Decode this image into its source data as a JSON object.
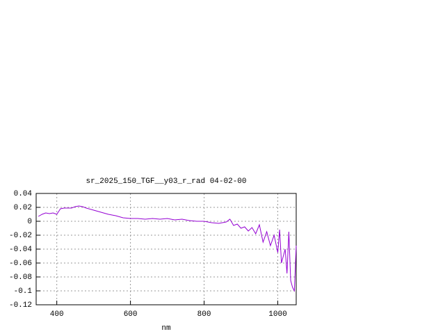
{
  "chart_data": {
    "type": "line",
    "title": "sr_2025_150_TGF__y03_r_rad 04-02-00",
    "x_label": "nm",
    "x": [
      350,
      360,
      370,
      380,
      390,
      400,
      410,
      420,
      440,
      450,
      460,
      470,
      480,
      500,
      520,
      540,
      560,
      580,
      600,
      620,
      640,
      660,
      680,
      700,
      720,
      740,
      760,
      780,
      800,
      820,
      840,
      860,
      870,
      880,
      890,
      900,
      910,
      920,
      930,
      940,
      950,
      960,
      970,
      980,
      990,
      1000,
      1005,
      1010,
      1020,
      1025,
      1030,
      1035,
      1040,
      1045,
      1050
    ],
    "series": [
      {
        "color": "#9400d3",
        "values": [
          0.007,
          0.01,
          0.012,
          0.011,
          0.012,
          0.01,
          0.018,
          0.019,
          0.019,
          0.021,
          0.022,
          0.021,
          0.019,
          0.016,
          0.013,
          0.01,
          0.008,
          0.005,
          0.004,
          0.004,
          0.003,
          0.004,
          0.003,
          0.004,
          0.002,
          0.003,
          0.001,
          0.0,
          0.0,
          -0.002,
          -0.003,
          -0.001,
          0.003,
          -0.006,
          -0.004,
          -0.01,
          -0.008,
          -0.014,
          -0.009,
          -0.018,
          -0.005,
          -0.03,
          -0.015,
          -0.035,
          -0.02,
          -0.045,
          -0.012,
          -0.06,
          -0.04,
          -0.075,
          -0.015,
          -0.085,
          -0.095,
          -0.1,
          -0.035
        ]
      }
    ],
    "xlim": [
      344,
      1050
    ],
    "ylim": [
      -0.12,
      0.04
    ],
    "xticks": [
      400,
      600,
      800,
      1000
    ],
    "yticks": [
      0.04,
      0.02,
      0,
      -0.02,
      -0.04,
      -0.06,
      -0.08,
      -0.1,
      -0.12
    ],
    "grid": true
  }
}
